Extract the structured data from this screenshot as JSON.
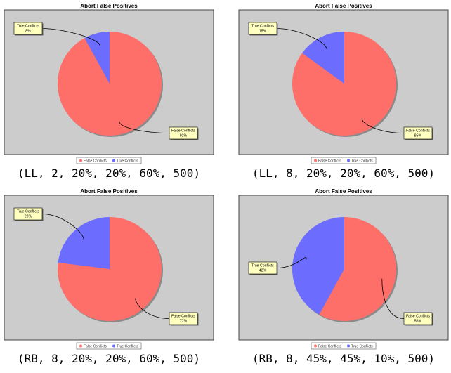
{
  "colors": {
    "false_conflicts": "#ff6f6a",
    "true_conflicts": "#6c6cff",
    "plot_bg": "#cccccc",
    "callout_bg": "#ffffc0"
  },
  "chart_data": [
    {
      "type": "pie",
      "title": "Abort False Positives",
      "labels": [
        "False Conflicts",
        "True Conflicts"
      ],
      "values": [
        92,
        8
      ],
      "slice_labels": [
        "False Conflicts\n92%",
        "True Conflicts\n8%"
      ],
      "legend": [
        "False Conflicts",
        "True Conflicts"
      ],
      "legend_position": "bottom",
      "caption": "(LL, 2, 20%, 20%, 60%, 500)"
    },
    {
      "type": "pie",
      "title": "Abort False Positives",
      "labels": [
        "False Conflicts",
        "True Conflicts"
      ],
      "values": [
        85,
        15
      ],
      "slice_labels": [
        "False Conflicts\n85%",
        "True Conflicts\n15%"
      ],
      "legend": [
        "False Conflicts",
        "True Conflicts"
      ],
      "legend_position": "bottom",
      "caption": "(LL, 8, 20%, 20%, 60%, 500)"
    },
    {
      "type": "pie",
      "title": "Abort False Positives",
      "labels": [
        "False Conflicts",
        "True Conflicts"
      ],
      "values": [
        77,
        23
      ],
      "slice_labels": [
        "False Conflicts\n77%",
        "True Conflicts\n23%"
      ],
      "legend": [
        "False Conflicts",
        "True Conflicts"
      ],
      "legend_position": "bottom",
      "caption": "(RB, 8, 20%, 20%, 60%, 500)"
    },
    {
      "type": "pie",
      "title": "Abort False Positives",
      "labels": [
        "False Conflicts",
        "True Conflicts"
      ],
      "values": [
        58,
        42
      ],
      "slice_labels": [
        "False Conflicts\n58%",
        "True Conflicts\n42%"
      ],
      "legend": [
        "False Conflicts",
        "True Conflicts"
      ],
      "legend_position": "bottom",
      "caption": "(RB, 8, 45%, 45%, 10%, 500)"
    }
  ]
}
